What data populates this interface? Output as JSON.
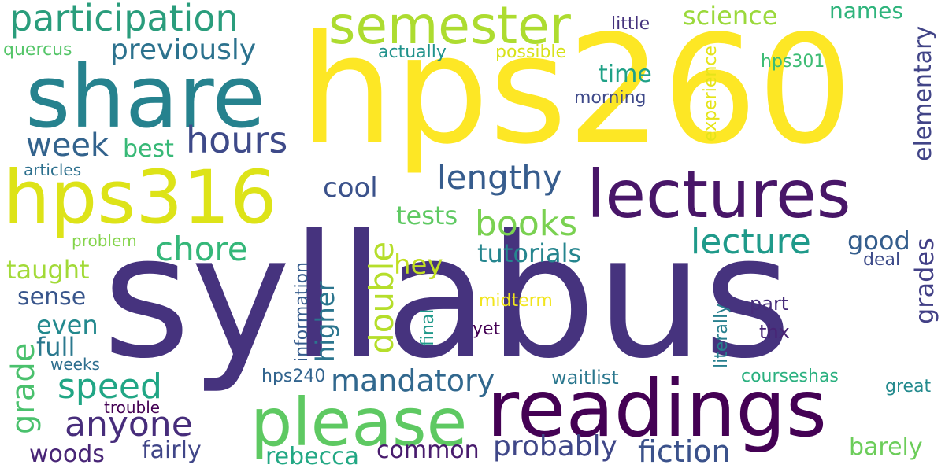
{
  "words": [
    {
      "id": "syllabus",
      "text": "syllabus",
      "color": "#46337e",
      "vertical": false
    },
    {
      "id": "hps260",
      "text": "hps260",
      "color": "#fde725",
      "vertical": false
    },
    {
      "id": "readings",
      "text": "readings",
      "color": "#440154",
      "vertical": false
    },
    {
      "id": "share",
      "text": "share",
      "color": "#26828e",
      "vertical": false
    },
    {
      "id": "hps316",
      "text": "hps316",
      "color": "#dde318",
      "vertical": false
    },
    {
      "id": "lectures",
      "text": "lectures",
      "color": "#481668",
      "vertical": false
    },
    {
      "id": "please",
      "text": "please",
      "color": "#5ec962",
      "vertical": false
    },
    {
      "id": "semester",
      "text": "semester",
      "color": "#addc30",
      "vertical": false
    },
    {
      "id": "participation",
      "text": "participation",
      "color": "#2a9d7c",
      "vertical": false
    },
    {
      "id": "hours",
      "text": "hours",
      "color": "#3e4a89",
      "vertical": false
    },
    {
      "id": "week",
      "text": "week",
      "color": "#33638d",
      "vertical": false
    },
    {
      "id": "lengthy",
      "text": "lengthy",
      "color": "#365c8d",
      "vertical": false
    },
    {
      "id": "books",
      "text": "books",
      "color": "#7ad151",
      "vertical": false
    },
    {
      "id": "lecture",
      "text": "lecture",
      "color": "#1f9a8a",
      "vertical": false
    },
    {
      "id": "chore",
      "text": "chore",
      "color": "#35b779",
      "vertical": false
    },
    {
      "id": "anyone",
      "text": "anyone",
      "color": "#472d7b",
      "vertical": false
    },
    {
      "id": "speed",
      "text": "speed",
      "color": "#21a685",
      "vertical": false
    },
    {
      "id": "double",
      "text": "double",
      "color": "#b5de2b",
      "vertical": true
    },
    {
      "id": "grade",
      "text": "grade",
      "color": "#4ac16d",
      "vertical": true
    },
    {
      "id": "mandatory",
      "text": "mandatory",
      "color": "#31688e",
      "vertical": false
    },
    {
      "id": "fiction",
      "text": "fiction",
      "color": "#3b528b",
      "vertical": false
    },
    {
      "id": "probably",
      "text": "probably",
      "color": "#3f4788",
      "vertical": false
    },
    {
      "id": "previously",
      "text": "previously",
      "color": "#2c728e",
      "vertical": false
    },
    {
      "id": "science",
      "text": "science",
      "color": "#9bd93c",
      "vertical": false
    },
    {
      "id": "names",
      "text": "names",
      "color": "#2fb47c",
      "vertical": false
    },
    {
      "id": "elementary",
      "text": "elementary",
      "color": "#414487",
      "vertical": true
    },
    {
      "id": "cool",
      "text": "cool",
      "color": "#3b528b",
      "vertical": false
    },
    {
      "id": "tests",
      "text": "tests",
      "color": "#5ec962",
      "vertical": false
    },
    {
      "id": "tutorials",
      "text": "tutorials",
      "color": "#25858e",
      "vertical": false
    },
    {
      "id": "hey",
      "text": "hey",
      "color": "#c2df23",
      "vertical": false
    },
    {
      "id": "higher",
      "text": "higher",
      "color": "#2b758e",
      "vertical": true
    },
    {
      "id": "grades",
      "text": "grades",
      "color": "#424086",
      "vertical": true
    },
    {
      "id": "good",
      "text": "good",
      "color": "#355e8d",
      "vertical": false
    },
    {
      "id": "taught",
      "text": "taught",
      "color": "#a2da37",
      "vertical": false
    },
    {
      "id": "sense",
      "text": "sense",
      "color": "#39568c",
      "vertical": false
    },
    {
      "id": "even",
      "text": "even",
      "color": "#23898e",
      "vertical": false
    },
    {
      "id": "full",
      "text": "full",
      "color": "#2a788e",
      "vertical": false
    },
    {
      "id": "time",
      "text": "time",
      "color": "#1fa187",
      "vertical": false
    },
    {
      "id": "best",
      "text": "best",
      "color": "#38b977",
      "vertical": false
    },
    {
      "id": "woods",
      "text": "woods",
      "color": "#482576",
      "vertical": false
    },
    {
      "id": "fairly",
      "text": "fairly",
      "color": "#404688",
      "vertical": false
    },
    {
      "id": "rebecca",
      "text": "rebecca",
      "color": "#22a884",
      "vertical": false
    },
    {
      "id": "common",
      "text": "common",
      "color": "#481b6d",
      "vertical": false
    },
    {
      "id": "barely",
      "text": "barely",
      "color": "#6ccd5a",
      "vertical": false
    },
    {
      "id": "little",
      "text": "little",
      "color": "#46337e",
      "vertical": false
    },
    {
      "id": "quercus",
      "text": "quercus",
      "color": "#54c568",
      "vertical": false
    },
    {
      "id": "actually",
      "text": "actually",
      "color": "#20928c",
      "vertical": false
    },
    {
      "id": "possible",
      "text": "possible",
      "color": "#d8e219",
      "vertical": false
    },
    {
      "id": "experience",
      "text": "experience",
      "color": "#e5e419",
      "vertical": true
    },
    {
      "id": "hps301",
      "text": "hps301",
      "color": "#3dbc74",
      "vertical": false
    },
    {
      "id": "morning",
      "text": "morning",
      "color": "#3e4989",
      "vertical": false
    },
    {
      "id": "articles",
      "text": "articles",
      "color": "#2d708e",
      "vertical": false
    },
    {
      "id": "problem",
      "text": "problem",
      "color": "#84d44b",
      "vertical": false
    },
    {
      "id": "deal",
      "text": "deal",
      "color": "#3e4c8a",
      "vertical": false
    },
    {
      "id": "information",
      "text": "information",
      "color": "#365c8d",
      "vertical": true
    },
    {
      "id": "midterm",
      "text": "midterm",
      "color": "#f1e51d",
      "vertical": false
    },
    {
      "id": "literally",
      "text": "literally",
      "color": "#277f8e",
      "vertical": true
    },
    {
      "id": "part",
      "text": "part",
      "color": "#472c7a",
      "vertical": false
    },
    {
      "id": "final",
      "text": "final",
      "color": "#1f998a",
      "vertical": true
    },
    {
      "id": "yet",
      "text": "yet",
      "color": "#440154",
      "vertical": false
    },
    {
      "id": "thx",
      "text": "thx",
      "color": "#482374",
      "vertical": false
    },
    {
      "id": "weeks",
      "text": "weeks",
      "color": "#2e6e8e",
      "vertical": false
    },
    {
      "id": "hps240",
      "text": "hps240",
      "color": "#32648e",
      "vertical": false
    },
    {
      "id": "waitlist",
      "text": "waitlist",
      "color": "#2a778e",
      "vertical": false
    },
    {
      "id": "courseshas",
      "text": "courseshas",
      "color": "#2ab07f",
      "vertical": false
    },
    {
      "id": "great",
      "text": "great",
      "color": "#238a8d",
      "vertical": false
    },
    {
      "id": "trouble",
      "text": "trouble",
      "color": "#440154",
      "vertical": false
    }
  ]
}
